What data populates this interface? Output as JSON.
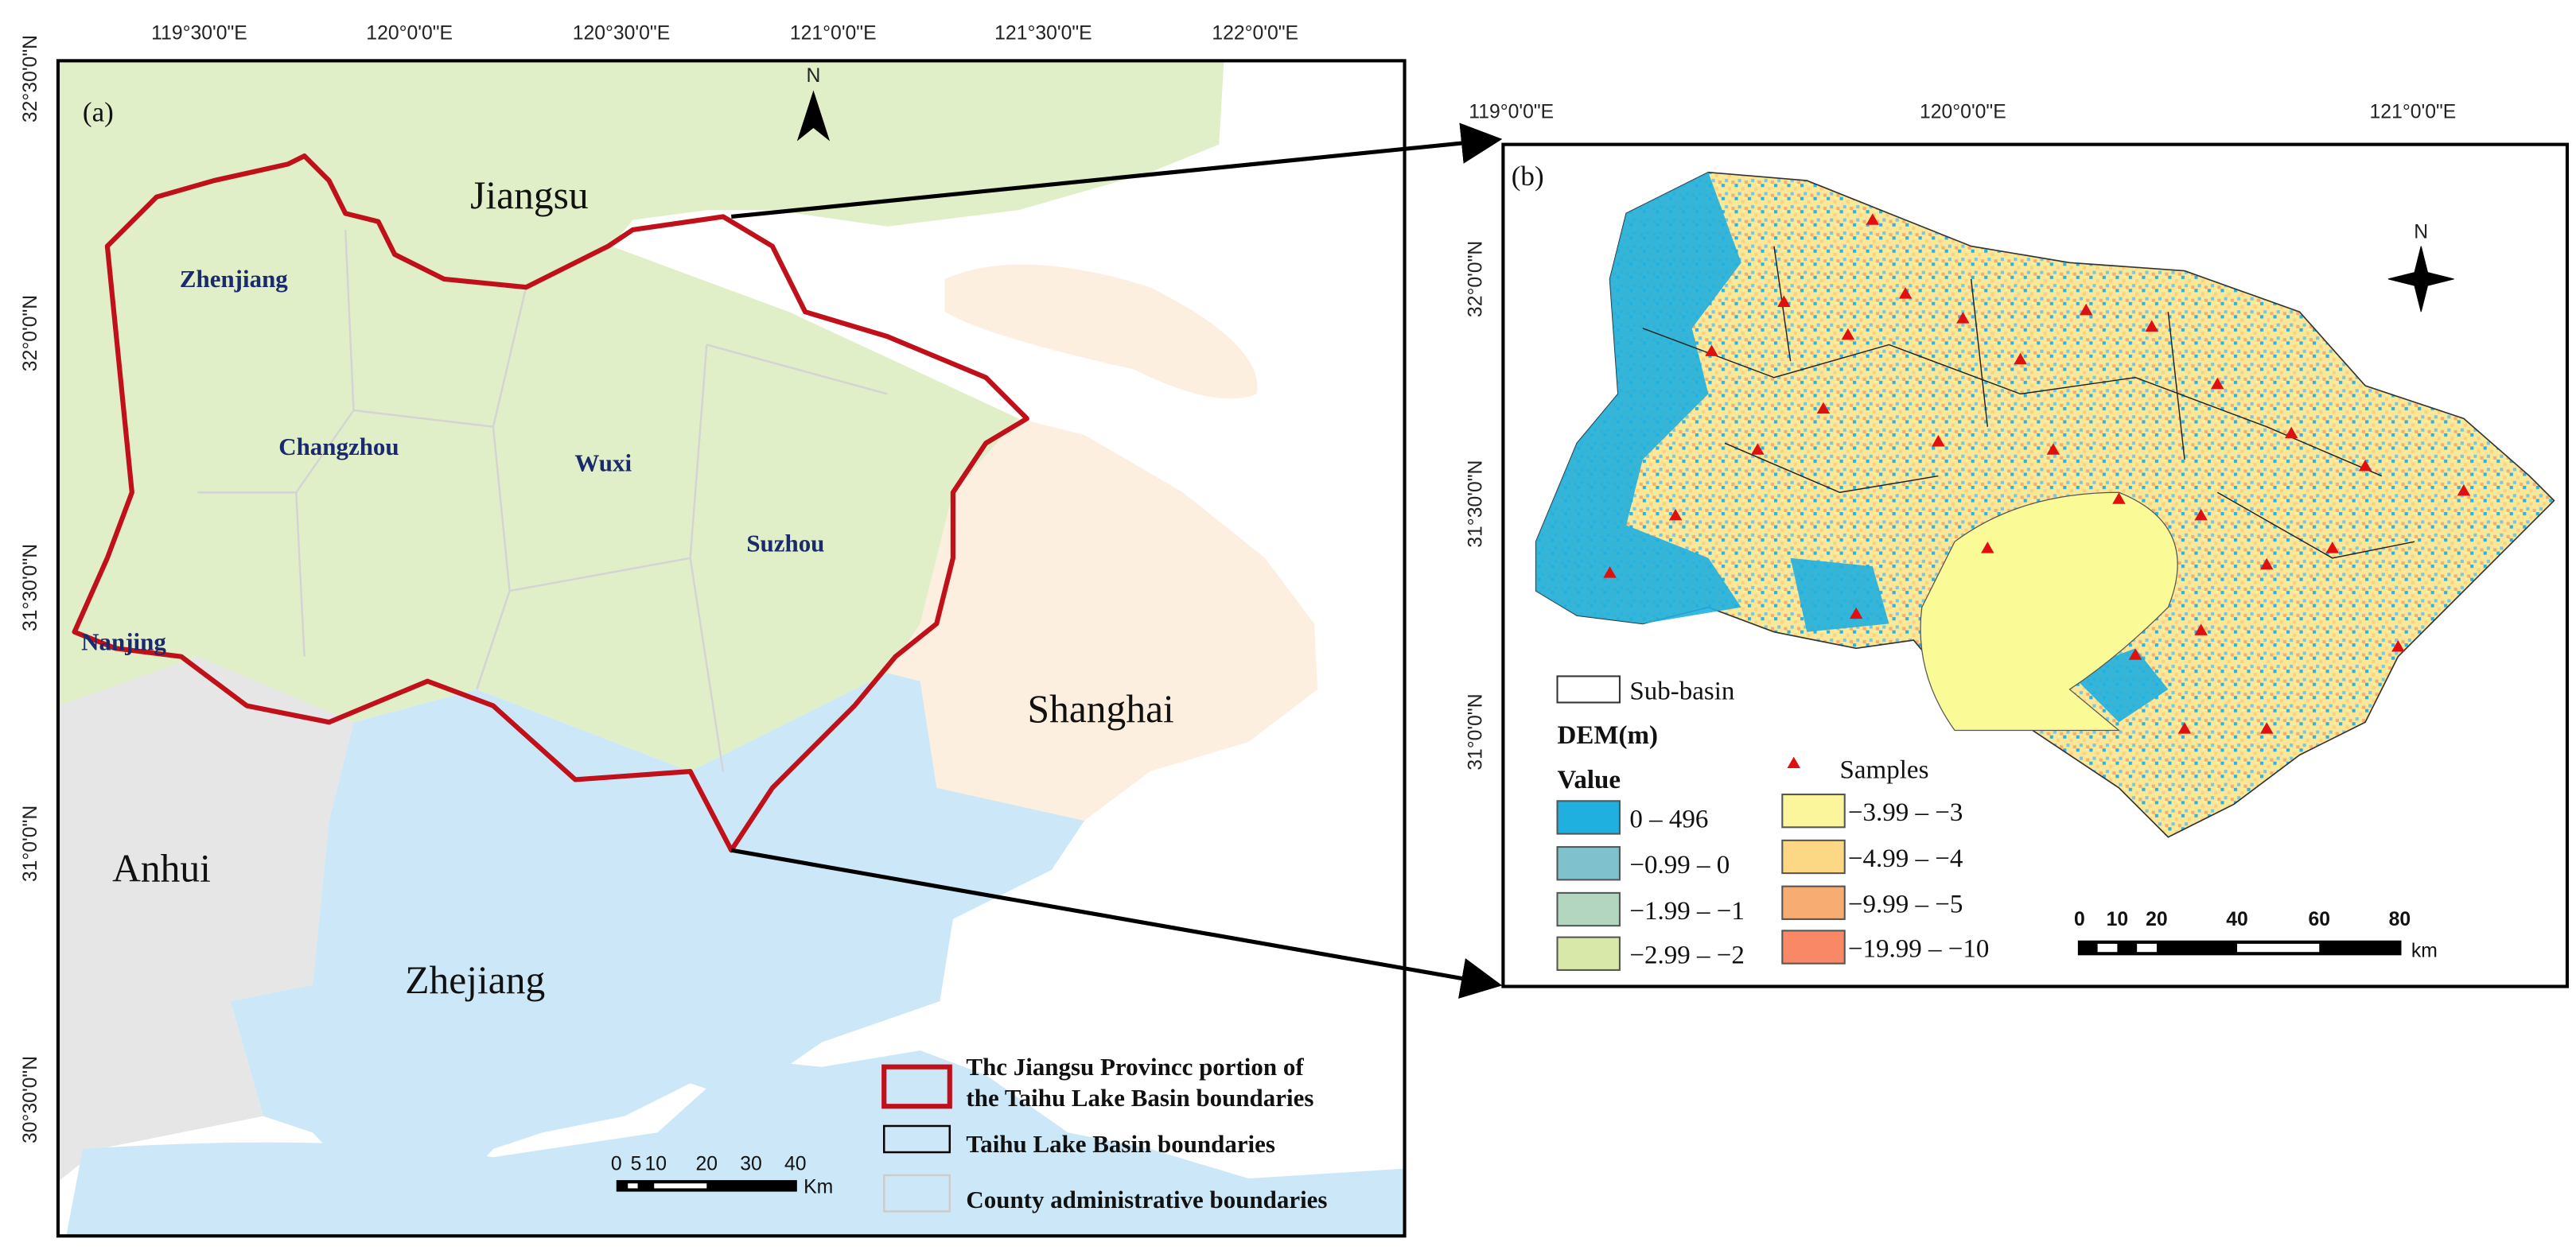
{
  "panel_a": {
    "label": "(a)",
    "longitudes": [
      "119°30'0\"E",
      "120°0'0\"E",
      "120°30'0\"E",
      "121°0'0\"E",
      "121°30'0\"E",
      "122°0'0\"E"
    ],
    "latitudes": [
      "32°30'0\"N",
      "32°0'0\"N",
      "31°30'0\"N",
      "31°0'0\"N",
      "30°30'0\"N"
    ],
    "regions": [
      "Jiangsu",
      "Anhui",
      "Zhejiang",
      "Shanghai"
    ],
    "cities": [
      "Zhenjiang",
      "Changzhou",
      "Wuxi",
      "Suzhou",
      "Nanjing"
    ],
    "north": "N",
    "legend": [
      "Thc Jiangsu Provincc portion of",
      "the Taihu Lake Basin boundaries",
      "Taihu Lake Basin boundaries",
      "County administrative boundaries"
    ],
    "scale": {
      "ticks": [
        0,
        5,
        10,
        20,
        30,
        40
      ],
      "unit": "Km"
    }
  },
  "panel_b": {
    "label": "(b)",
    "longitudes": [
      "119°0'0\"E",
      "120°0'0\"E",
      "121°0'0\"E"
    ],
    "latitudes": [
      "32°0'0\"N",
      "31°30'0\"N",
      "31°0'0\"N"
    ],
    "north": "N",
    "legend": {
      "subbasin": "Sub-basin",
      "title": "DEM(m)",
      "value": "Value",
      "samples": "Samples",
      "classes": [
        "0 – 496",
        "−0.99 – 0",
        "−1.99 – −1",
        "−2.99 – −2",
        "−3.99 – −3",
        "−4.99 – −4",
        "−9.99 – −5",
        "−19.99 – −10"
      ]
    },
    "scale": {
      "ticks": [
        0,
        10,
        20,
        40,
        60,
        80
      ],
      "unit": "km"
    }
  }
}
